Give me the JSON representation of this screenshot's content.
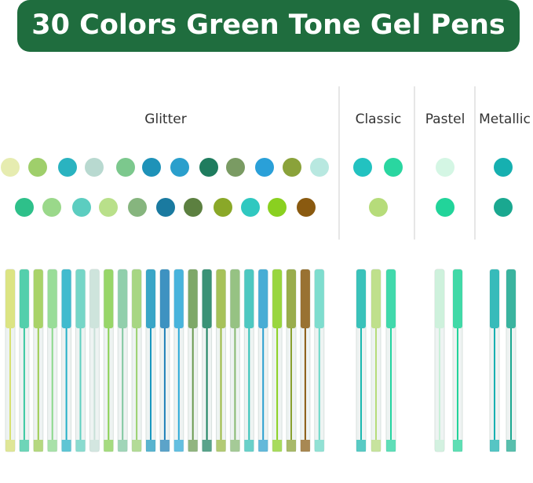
{
  "header": {
    "title": "30 Colors Green Tone Gel Pens"
  },
  "sections": [
    {
      "label": "Glitter"
    },
    {
      "label": "Classic"
    },
    {
      "label": "Pastel"
    },
    {
      "label": "Metallic"
    }
  ]
}
